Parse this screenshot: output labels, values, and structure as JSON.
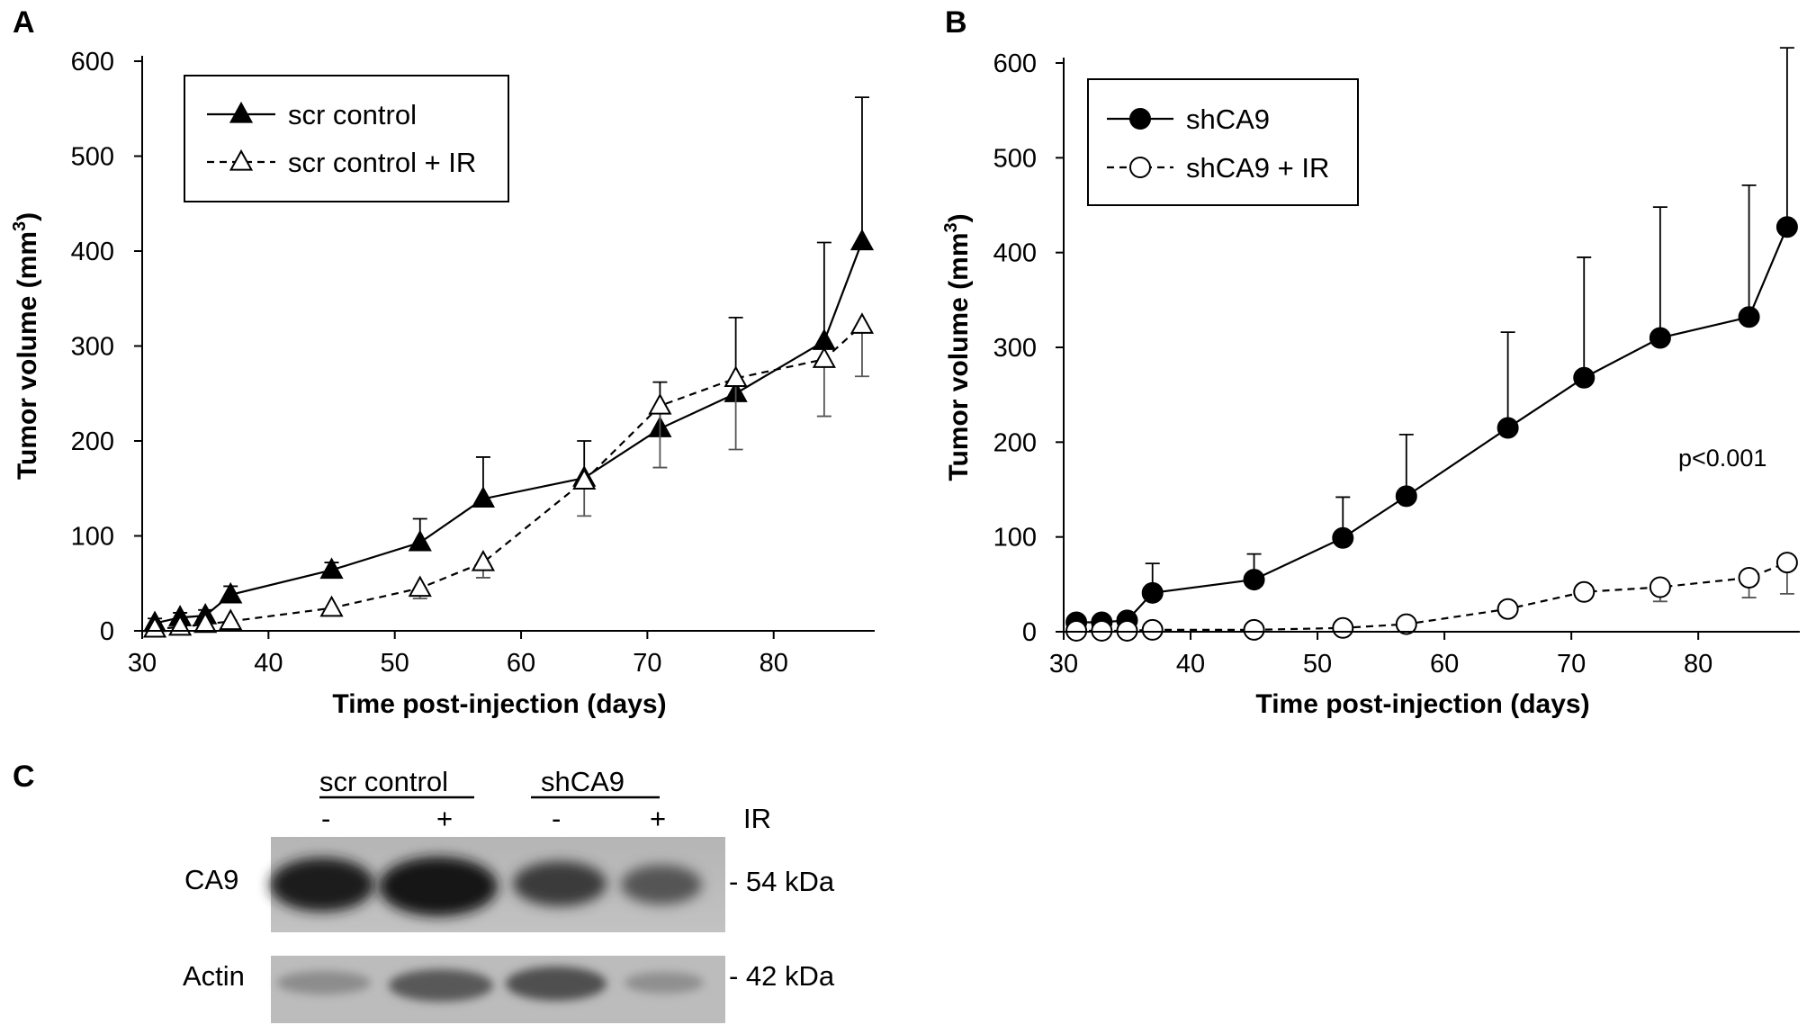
{
  "panel_labels": {
    "a": "A",
    "b": "B",
    "c": "C"
  },
  "chart_data": [
    {
      "id": "A",
      "type": "line",
      "xlabel": "Time post-injection (days)",
      "ylabel": "Tumor volume (mm",
      "ylabel_sup": "3",
      "ylabel_close": ")",
      "xlim": [
        30,
        88
      ],
      "ylim": [
        0,
        600
      ],
      "xticks": [
        30,
        40,
        50,
        60,
        70,
        80
      ],
      "yticks": [
        0,
        100,
        200,
        300,
        400,
        500,
        600
      ],
      "grid": false,
      "legend_position": "top-left",
      "series": [
        {
          "name": "scr control",
          "marker": "triangle-filled",
          "line": "solid",
          "x": [
            31,
            33,
            35,
            37,
            45,
            52,
            57,
            65,
            71,
            77,
            84,
            87
          ],
          "y": [
            8,
            14,
            16,
            38,
            64,
            93,
            139,
            161,
            213,
            250,
            305,
            410
          ],
          "err_upper": [
            13,
            19,
            22,
            47,
            72,
            118,
            183,
            200,
            262,
            330,
            409,
            562
          ]
        },
        {
          "name": "scr control + IR",
          "marker": "triangle-open",
          "line": "dashed",
          "x": [
            31,
            33,
            35,
            37,
            45,
            52,
            57,
            65,
            71,
            77,
            84,
            87
          ],
          "y": [
            2,
            4,
            7,
            10,
            24,
            45,
            72,
            158,
            237,
            266,
            286,
            322
          ],
          "err_lower": [
            1,
            2,
            4,
            6,
            16,
            34,
            56,
            121,
            172,
            191,
            226,
            268
          ]
        }
      ]
    },
    {
      "id": "B",
      "type": "line",
      "xlabel": "Time post-injection (days)",
      "ylabel": "Tumor volume (mm",
      "ylabel_sup": "3",
      "ylabel_close": ")",
      "xlim": [
        30,
        88
      ],
      "ylim": [
        0,
        600
      ],
      "xticks": [
        30,
        40,
        50,
        60,
        70,
        80
      ],
      "yticks": [
        0,
        100,
        200,
        300,
        400,
        500,
        600
      ],
      "grid": false,
      "legend_position": "top-left",
      "annotation": "p<0.001",
      "series": [
        {
          "name": "shCA9",
          "marker": "circle-filled",
          "line": "solid",
          "x": [
            31,
            33,
            35,
            37,
            45,
            52,
            57,
            65,
            71,
            77,
            84,
            87
          ],
          "y": [
            10,
            10,
            12,
            41,
            55,
            99,
            143,
            215,
            268,
            310,
            332,
            427
          ],
          "err_upper": [
            13,
            13,
            16,
            72,
            82,
            142,
            208,
            316,
            395,
            448,
            471,
            616
          ]
        },
        {
          "name": "shCA9 + IR",
          "marker": "circle-open",
          "line": "dashed",
          "x": [
            31,
            33,
            35,
            37,
            45,
            52,
            57,
            65,
            71,
            77,
            84,
            87
          ],
          "y": [
            1,
            1,
            1,
            2,
            2,
            4,
            8,
            24,
            42,
            47,
            57,
            73
          ],
          "err_lower": [
            0,
            0,
            0,
            1,
            1,
            2,
            5,
            18,
            36,
            32,
            36,
            40
          ]
        }
      ]
    }
  ],
  "blot": {
    "group1": "scr control",
    "group2": "shCA9",
    "lane_labels": [
      "-",
      "+",
      "-",
      "+"
    ],
    "ir_label": "IR",
    "row1_label": "CA9",
    "row2_label": "Actin",
    "row1_size": "- 54 kDa",
    "row2_size": "- 42 kDa"
  }
}
